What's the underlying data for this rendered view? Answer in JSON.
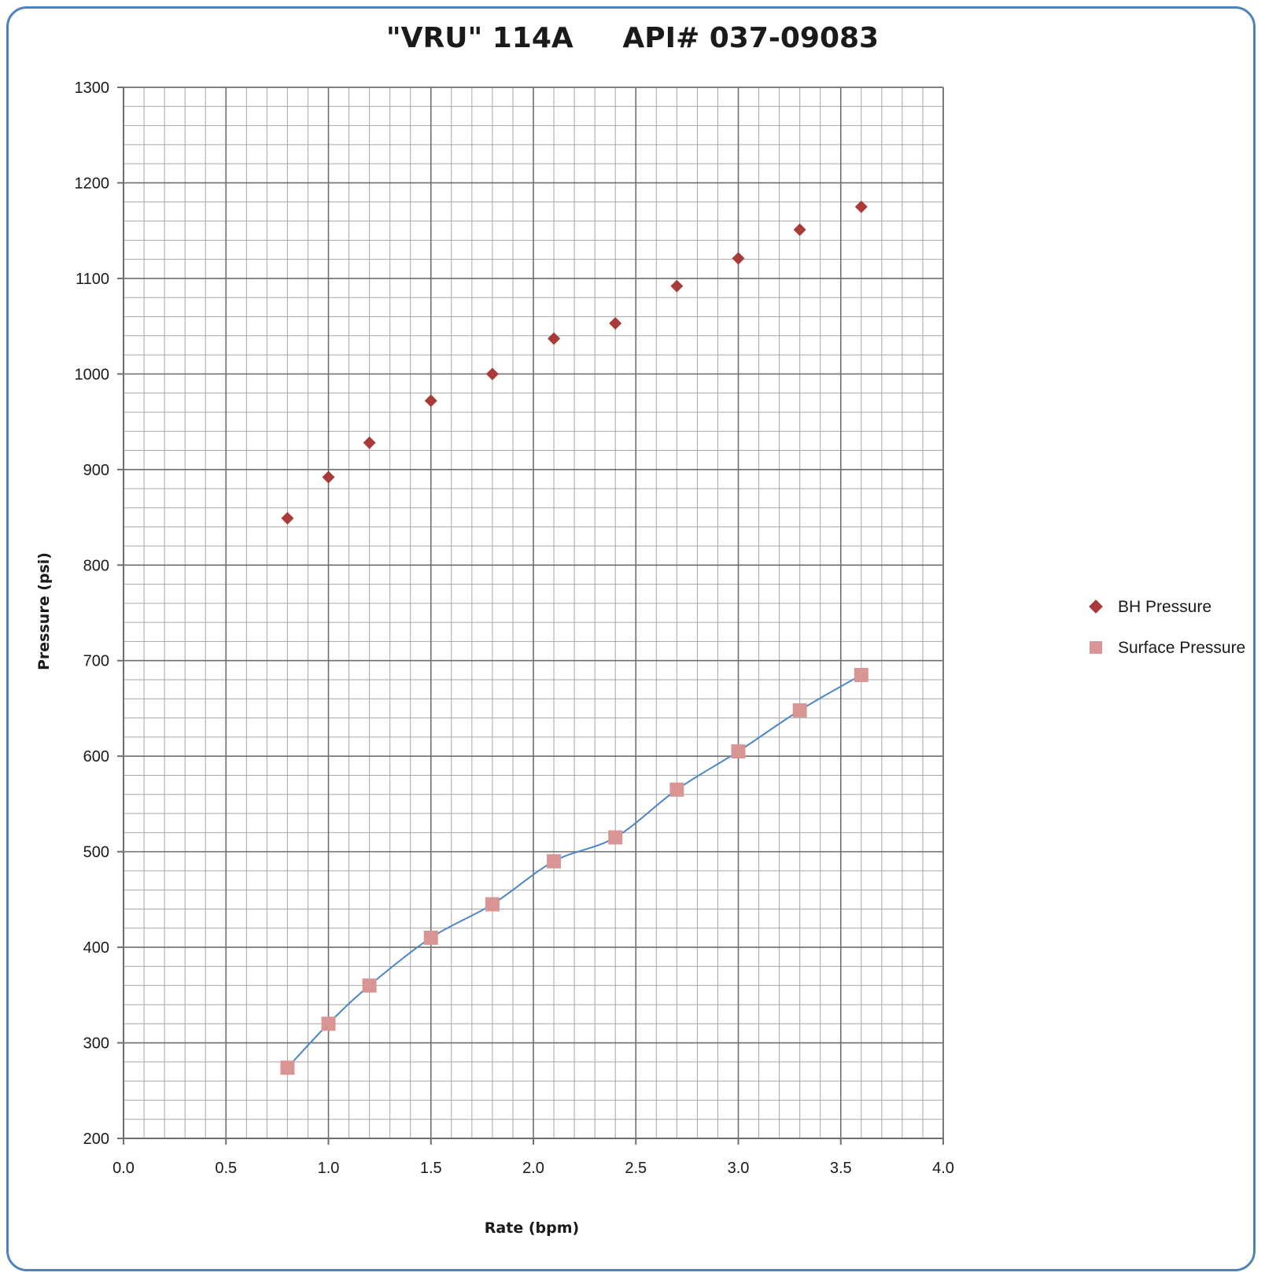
{
  "chart_data": {
    "type": "scatter",
    "title": "\"VRU\" 114A     API# 037-09083",
    "xlabel": "Rate (bpm)",
    "ylabel": "Pressure (psi)",
    "xlim": [
      0.0,
      4.0
    ],
    "ylim": [
      200,
      1300
    ],
    "x_ticks": [
      "0.0",
      "0.5",
      "1.0",
      "1.5",
      "2.0",
      "2.5",
      "3.0",
      "3.5",
      "4.0"
    ],
    "y_ticks": [
      "200",
      "300",
      "400",
      "500",
      "600",
      "700",
      "800",
      "900",
      "1000",
      "1100",
      "1200",
      "1300"
    ],
    "grid": true,
    "legend_position": "right",
    "series": [
      {
        "name": "BH Pressure",
        "marker": "diamond",
        "color": "#a83a37",
        "x": [
          0.8,
          1.0,
          1.2,
          1.5,
          1.8,
          2.1,
          2.4,
          2.7,
          3.0,
          3.3,
          3.6
        ],
        "y": [
          849,
          892,
          928,
          972,
          1000,
          1037,
          1053,
          1092,
          1121,
          1151,
          1175
        ]
      },
      {
        "name": "Surface Pressure",
        "marker": "square",
        "color": "#d99594",
        "x": [
          0.8,
          1.0,
          1.2,
          1.5,
          1.8,
          2.1,
          2.4,
          2.7,
          3.0,
          3.3,
          3.6
        ],
        "y": [
          274,
          320,
          360,
          410,
          445,
          490,
          515,
          565,
          605,
          648,
          685
        ]
      }
    ],
    "trendline": {
      "series": "Surface Pressure",
      "color": "#4a86c8",
      "x_range": [
        0.8,
        3.6
      ]
    }
  }
}
